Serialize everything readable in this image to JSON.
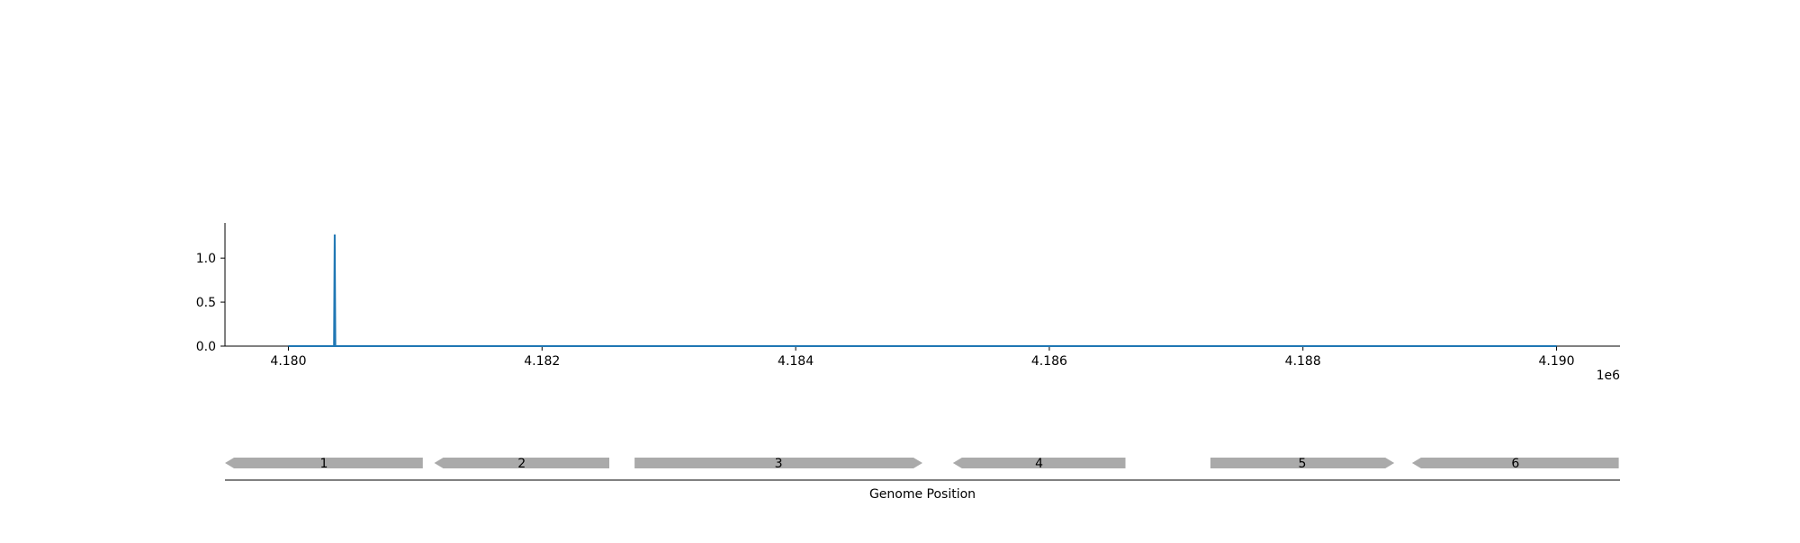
{
  "chart_data": [
    {
      "type": "line",
      "title": "",
      "xlabel": "",
      "ylabel": "",
      "xlim": [
        4179500,
        4190500
      ],
      "ylim": [
        0,
        1.4
      ],
      "x_offset_label": "1e6",
      "xticks": [
        {
          "value": 4180000,
          "label": "4.180"
        },
        {
          "value": 4182000,
          "label": "4.182"
        },
        {
          "value": 4184000,
          "label": "4.184"
        },
        {
          "value": 4186000,
          "label": "4.186"
        },
        {
          "value": 4188000,
          "label": "4.188"
        },
        {
          "value": 4190000,
          "label": "4.190"
        }
      ],
      "yticks": [
        {
          "value": 0.0,
          "label": "0.0"
        },
        {
          "value": 0.5,
          "label": "0.5"
        },
        {
          "value": 1.0,
          "label": "1.0"
        }
      ],
      "series": [
        {
          "color": "#1f77b4",
          "x": [
            4180000,
            4180360,
            4180365,
            4180370,
            4190000
          ],
          "y": [
            0,
            0,
            1.27,
            0,
            0
          ]
        }
      ],
      "grid": false,
      "legend": "none"
    },
    {
      "type": "gene_map",
      "xlabel": "Genome Position",
      "xlim": [
        4179500,
        4190500
      ],
      "feature_color": "#aaaaaa",
      "features": [
        {
          "label": "1",
          "start": 4179500,
          "end": 4181060,
          "strand": "-"
        },
        {
          "label": "2",
          "start": 4181150,
          "end": 4182530,
          "strand": "-"
        },
        {
          "label": "3",
          "start": 4182730,
          "end": 4185000,
          "strand": "+"
        },
        {
          "label": "4",
          "start": 4185240,
          "end": 4186600,
          "strand": "-"
        },
        {
          "label": "5",
          "start": 4187270,
          "end": 4188720,
          "strand": "+"
        },
        {
          "label": "6",
          "start": 4188860,
          "end": 4190490,
          "strand": "-"
        }
      ]
    }
  ]
}
